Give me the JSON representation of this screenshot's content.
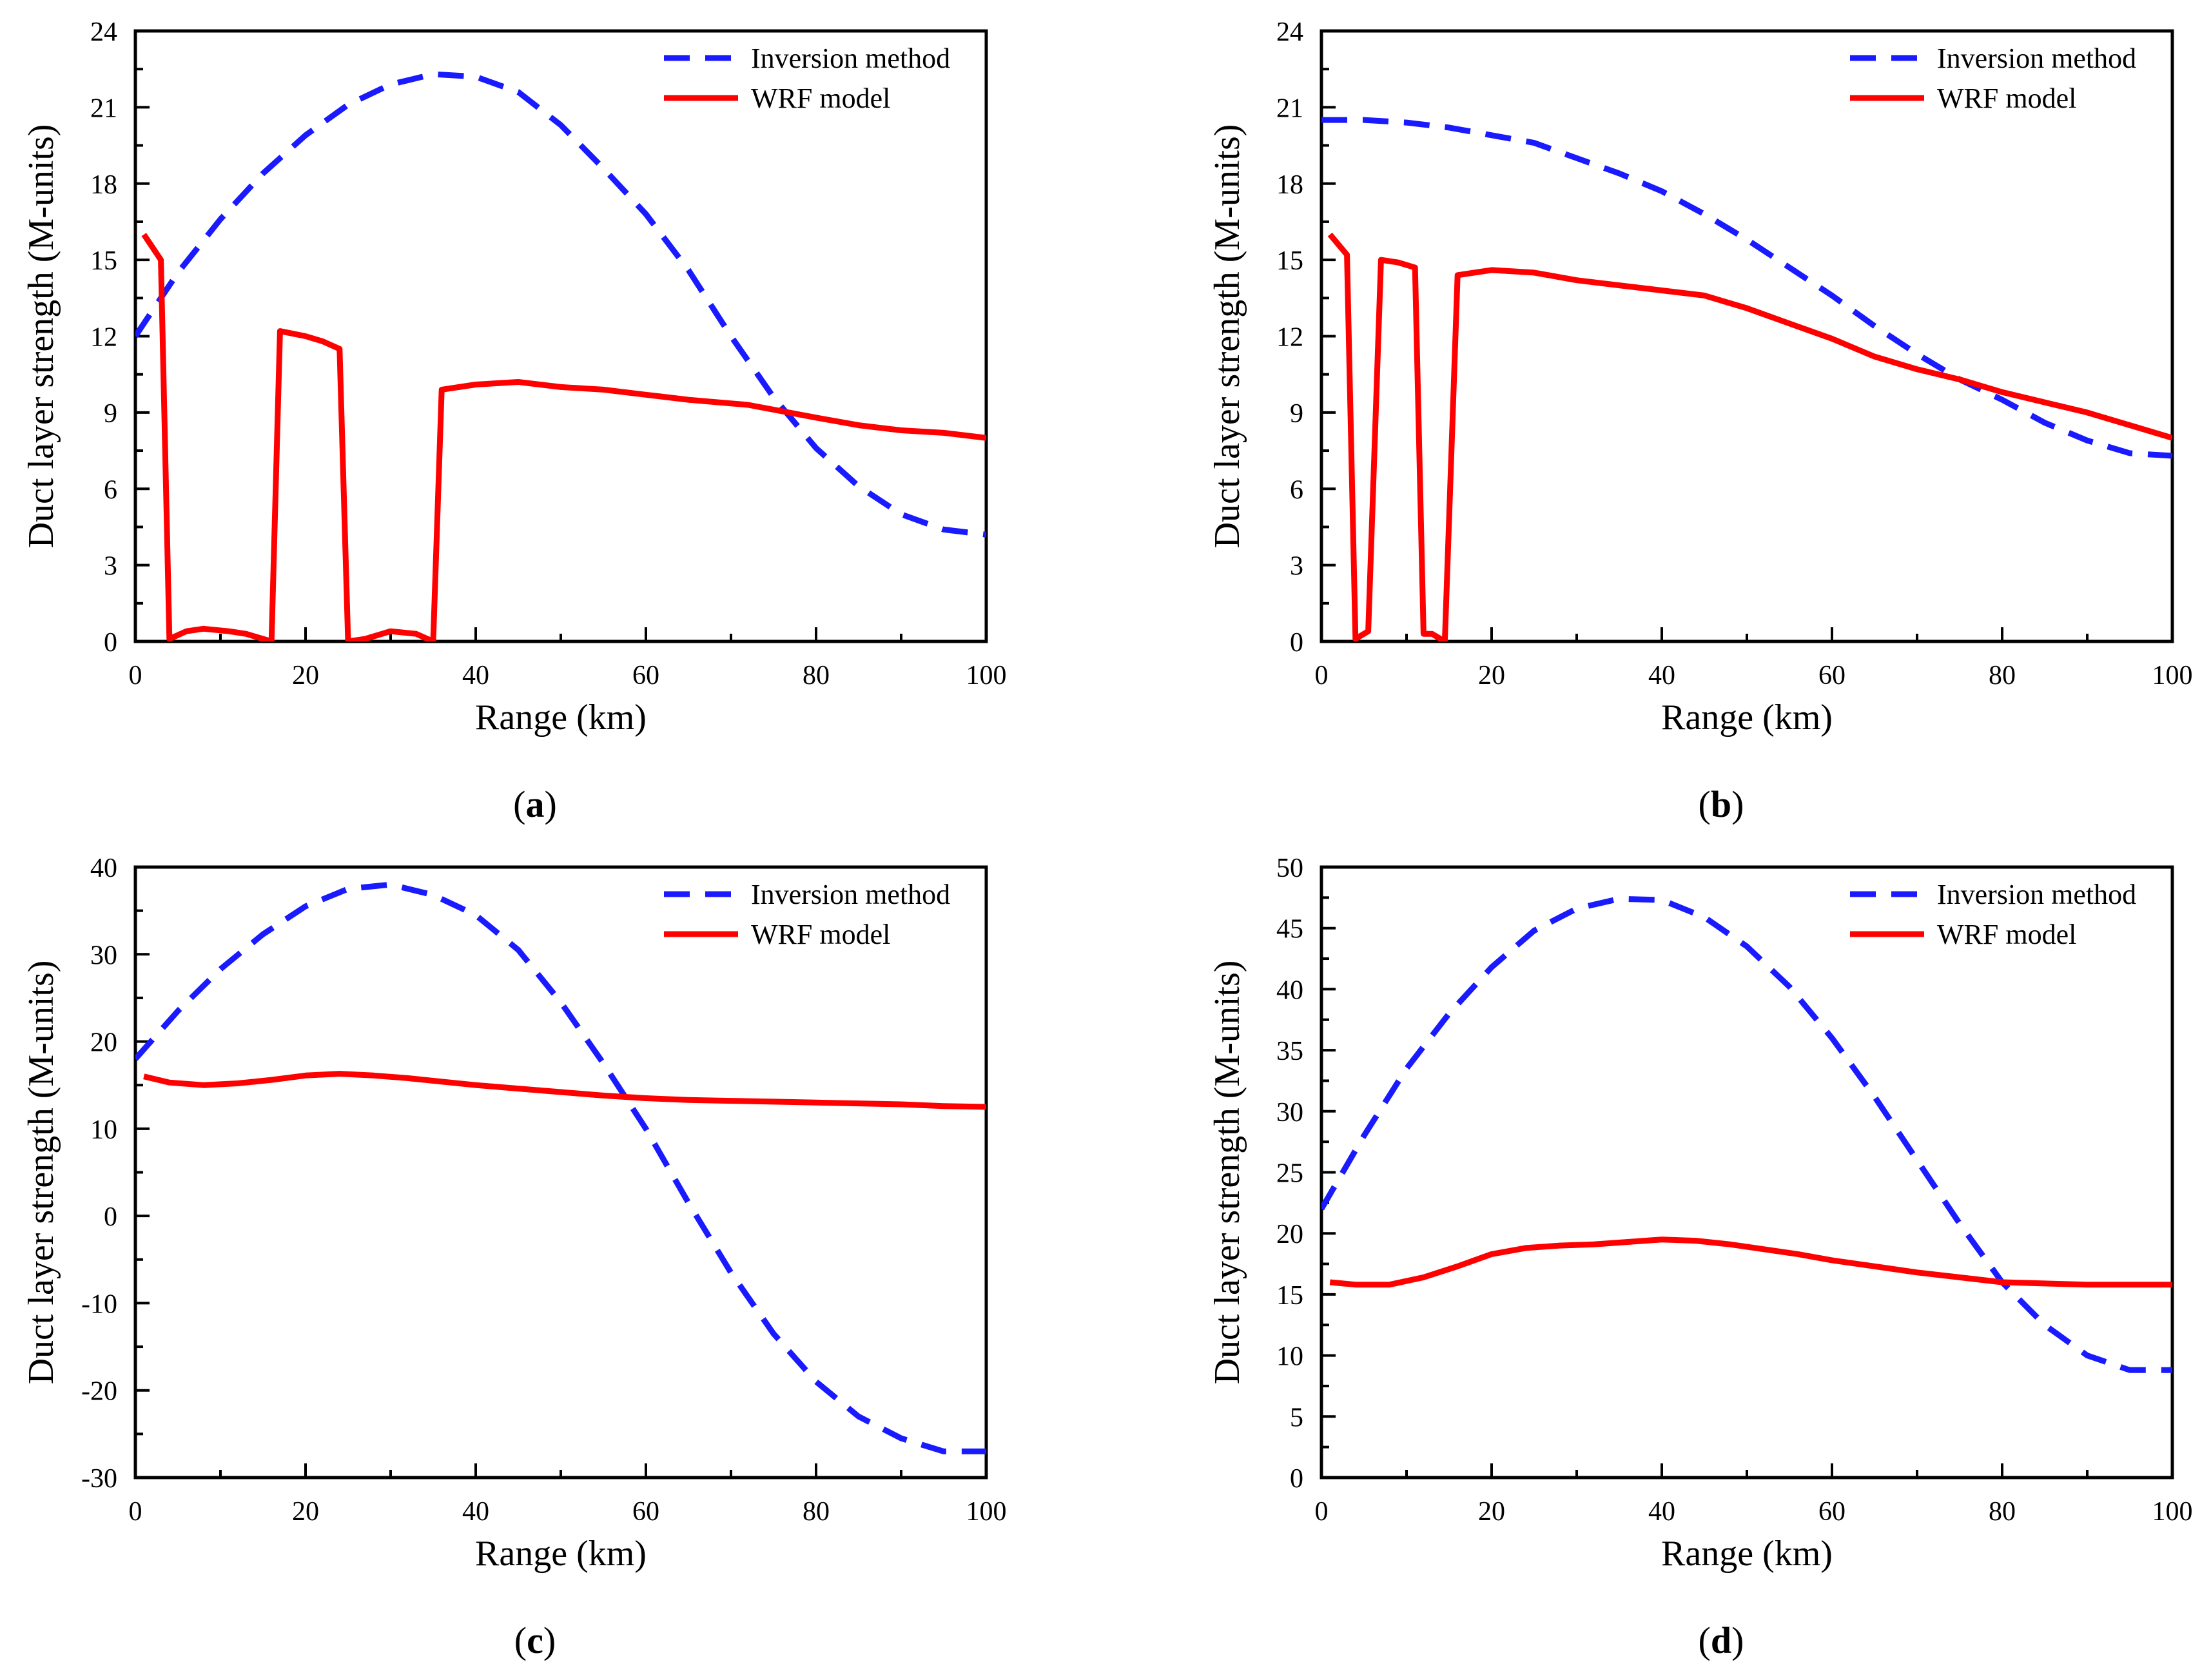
{
  "colors": {
    "inversion": "#1a1aff",
    "wrf": "#ff0000",
    "axis": "#000000",
    "background": "#ffffff"
  },
  "chart_data": [
    {
      "panel": "a",
      "caption": "(a)",
      "caption_letter": "a",
      "type": "line",
      "xlabel": "Range (km)",
      "ylabel": "Duct layer strength (M-units)",
      "xlim": [
        0,
        100
      ],
      "ylim": [
        0,
        24
      ],
      "xticks": [
        0,
        20,
        40,
        60,
        80,
        100
      ],
      "yticks": [
        0,
        3,
        6,
        9,
        12,
        15,
        18,
        21,
        24
      ],
      "xtick_labels": [
        "0",
        "20",
        "40",
        "60",
        "80",
        "100"
      ],
      "ytick_labels": [
        "0",
        "3",
        "6",
        "9",
        "12",
        "15",
        "18",
        "21",
        "24"
      ],
      "grid": false,
      "legend_position": "top-right",
      "series": [
        {
          "name": "Inversion method",
          "style": "dashed",
          "color": "#1a1aff",
          "x": [
            0,
            5,
            10,
            15,
            20,
            25,
            30,
            35,
            40,
            45,
            50,
            55,
            60,
            65,
            70,
            75,
            80,
            85,
            90,
            95,
            100
          ],
          "y": [
            12.0,
            14.5,
            16.6,
            18.4,
            19.9,
            21.1,
            21.9,
            22.3,
            22.2,
            21.6,
            20.3,
            18.6,
            16.8,
            14.6,
            12.0,
            9.6,
            7.6,
            6.1,
            5.0,
            4.4,
            4.2
          ]
        },
        {
          "name": "WRF model",
          "style": "solid",
          "color": "#ff0000",
          "x": [
            1,
            3,
            4,
            6,
            8,
            11,
            13,
            16,
            17,
            20,
            22,
            24,
            25,
            27,
            30,
            33,
            35,
            36,
            40,
            45,
            50,
            55,
            60,
            65,
            72,
            80,
            85,
            90,
            95,
            100
          ],
          "y": [
            16.0,
            15.0,
            0.1,
            0.4,
            0.5,
            0.4,
            0.3,
            0.0,
            12.2,
            12.0,
            11.8,
            11.5,
            0.0,
            0.1,
            0.4,
            0.3,
            0.0,
            9.9,
            10.1,
            10.2,
            10.0,
            9.9,
            9.7,
            9.5,
            9.3,
            8.8,
            8.5,
            8.3,
            8.2,
            8.0
          ]
        }
      ]
    },
    {
      "panel": "b",
      "caption": "(b)",
      "caption_letter": "b",
      "type": "line",
      "xlabel": "Range (km)",
      "ylabel": "Duct layer strength (M-units)",
      "xlim": [
        0,
        100
      ],
      "ylim": [
        0,
        24
      ],
      "xticks": [
        0,
        20,
        40,
        60,
        80,
        100
      ],
      "yticks": [
        0,
        3,
        6,
        9,
        12,
        15,
        18,
        21,
        24
      ],
      "xtick_labels": [
        "0",
        "20",
        "40",
        "60",
        "80",
        "100"
      ],
      "ytick_labels": [
        "0",
        "3",
        "6",
        "9",
        "12",
        "15",
        "18",
        "21",
        "24"
      ],
      "grid": false,
      "legend_position": "top-right",
      "series": [
        {
          "name": "Inversion method",
          "style": "dashed",
          "color": "#1a1aff",
          "x": [
            0,
            5,
            10,
            15,
            20,
            25,
            30,
            35,
            40,
            45,
            50,
            55,
            60,
            65,
            70,
            75,
            80,
            85,
            90,
            95,
            100
          ],
          "y": [
            20.5,
            20.5,
            20.4,
            20.2,
            19.9,
            19.6,
            19.0,
            18.4,
            17.7,
            16.8,
            15.8,
            14.7,
            13.6,
            12.4,
            11.3,
            10.3,
            9.5,
            8.6,
            7.9,
            7.4,
            7.3
          ]
        },
        {
          "name": "WRF model",
          "style": "solid",
          "color": "#ff0000",
          "x": [
            1,
            3,
            4,
            5.5,
            7,
            9,
            11,
            12,
            13,
            14.5,
            16,
            20,
            25,
            30,
            35,
            40,
            45,
            50,
            55,
            60,
            65,
            70,
            75,
            80,
            85,
            90,
            95,
            100
          ],
          "y": [
            16.0,
            15.2,
            0.1,
            0.4,
            15.0,
            14.9,
            14.7,
            0.3,
            0.3,
            0.0,
            14.4,
            14.6,
            14.5,
            14.2,
            14.0,
            13.8,
            13.6,
            13.1,
            12.5,
            11.9,
            11.2,
            10.7,
            10.3,
            9.8,
            9.4,
            9.0,
            8.5,
            8.0
          ]
        }
      ]
    },
    {
      "panel": "c",
      "caption": "(c)",
      "caption_letter": "c",
      "type": "line",
      "xlabel": "Range (km)",
      "ylabel": "Duct layer strength (M-units)",
      "xlim": [
        0,
        100
      ],
      "ylim": [
        -30,
        40
      ],
      "xticks": [
        0,
        20,
        40,
        60,
        80,
        100
      ],
      "yticks": [
        -30,
        -20,
        -10,
        0,
        10,
        20,
        30,
        40
      ],
      "xtick_labels": [
        "0",
        "20",
        "40",
        "60",
        "80",
        "100"
      ],
      "ytick_labels": [
        "-30",
        "-20",
        "-10",
        "0",
        "10",
        "20",
        "30",
        "40"
      ],
      "grid": false,
      "legend_position": "top-right",
      "series": [
        {
          "name": "Inversion method",
          "style": "dashed",
          "color": "#1a1aff",
          "x": [
            0,
            5,
            10,
            15,
            20,
            25,
            30,
            35,
            40,
            45,
            50,
            55,
            60,
            65,
            70,
            75,
            80,
            85,
            90,
            95,
            100
          ],
          "y": [
            18.0,
            23.5,
            28.3,
            32.3,
            35.5,
            37.5,
            38.0,
            36.8,
            34.5,
            30.5,
            24.5,
            17.5,
            10.0,
            1.5,
            -6.5,
            -13.5,
            -19.0,
            -23.0,
            -25.5,
            -27.0,
            -27.0
          ]
        },
        {
          "name": "WRF model",
          "style": "solid",
          "color": "#ff0000",
          "x": [
            1,
            4,
            8,
            12,
            16,
            20,
            24,
            28,
            32,
            36,
            40,
            45,
            50,
            55,
            60,
            65,
            70,
            75,
            80,
            85,
            90,
            95,
            100
          ],
          "y": [
            16.0,
            15.3,
            15.0,
            15.2,
            15.6,
            16.1,
            16.3,
            16.1,
            15.8,
            15.4,
            15.0,
            14.6,
            14.2,
            13.8,
            13.5,
            13.3,
            13.2,
            13.1,
            13.0,
            12.9,
            12.8,
            12.6,
            12.5
          ]
        }
      ]
    },
    {
      "panel": "d",
      "caption": "(d)",
      "caption_letter": "d",
      "type": "line",
      "xlabel": "Range (km)",
      "ylabel": "Duct layer strength (M-units)",
      "xlim": [
        0,
        100
      ],
      "ylim": [
        0,
        50
      ],
      "xticks": [
        0,
        20,
        40,
        60,
        80,
        100
      ],
      "yticks": [
        0,
        5,
        10,
        15,
        20,
        25,
        30,
        35,
        40,
        45,
        50
      ],
      "xtick_labels": [
        "0",
        "20",
        "40",
        "60",
        "80",
        "100"
      ],
      "ytick_labels": [
        "0",
        "5",
        "10",
        "15",
        "20",
        "25",
        "30",
        "35",
        "40",
        "45",
        "50"
      ],
      "grid": false,
      "legend_position": "top-right",
      "series": [
        {
          "name": "Inversion method",
          "style": "dashed",
          "color": "#1a1aff",
          "x": [
            0,
            5,
            10,
            15,
            20,
            25,
            30,
            35,
            40,
            45,
            50,
            55,
            60,
            65,
            70,
            75,
            80,
            85,
            90,
            95,
            100
          ],
          "y": [
            22.0,
            28.0,
            33.5,
            38.0,
            41.8,
            44.8,
            46.6,
            47.4,
            47.3,
            45.9,
            43.5,
            40.2,
            36.0,
            31.2,
            26.0,
            20.8,
            16.0,
            12.5,
            10.0,
            8.8,
            8.8
          ]
        },
        {
          "name": "WRF model",
          "style": "solid",
          "color": "#ff0000",
          "x": [
            1,
            4,
            8,
            12,
            16,
            20,
            24,
            28,
            32,
            36,
            40,
            44,
            48,
            52,
            56,
            60,
            65,
            70,
            75,
            80,
            85,
            90,
            95,
            100
          ],
          "y": [
            16.0,
            15.8,
            15.8,
            16.4,
            17.3,
            18.3,
            18.8,
            19.0,
            19.1,
            19.3,
            19.5,
            19.4,
            19.1,
            18.7,
            18.3,
            17.8,
            17.3,
            16.8,
            16.4,
            16.0,
            15.9,
            15.8,
            15.8,
            15.8
          ]
        }
      ]
    }
  ]
}
